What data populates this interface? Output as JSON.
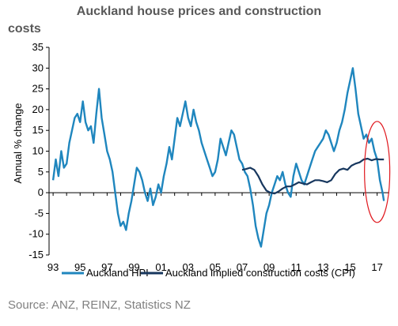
{
  "chart_data": {
    "type": "line",
    "title_line1": "Auckland house prices and construction",
    "title_line2": "costs",
    "ylabel": "Annual % change",
    "xlabel": "",
    "ylim": [
      -15,
      35
    ],
    "xlim": [
      1992.7,
      2017.9
    ],
    "yticks": [
      35,
      30,
      25,
      20,
      15,
      10,
      5,
      0,
      -5,
      -10,
      -15
    ],
    "xtick_labels": [
      "93",
      "95",
      "97",
      "99",
      "01",
      "03",
      "05",
      "07",
      "09",
      "11",
      "13",
      "15",
      "17"
    ],
    "xtick_years": [
      1993,
      1995,
      1997,
      1999,
      2001,
      2003,
      2005,
      2007,
      2009,
      2011,
      2013,
      2015,
      2017
    ],
    "legend_position": "bottom",
    "series": [
      {
        "name": "Auckland HPI",
        "color": "#1f86be",
        "x": [
          1993.0,
          1993.2,
          1993.4,
          1993.6,
          1993.8,
          1994.0,
          1994.2,
          1994.4,
          1994.6,
          1994.8,
          1995.0,
          1995.2,
          1995.4,
          1995.6,
          1995.8,
          1996.0,
          1996.2,
          1996.4,
          1996.6,
          1996.8,
          1997.0,
          1997.2,
          1997.4,
          1997.6,
          1997.8,
          1998.0,
          1998.2,
          1998.4,
          1998.6,
          1998.8,
          1999.0,
          1999.2,
          1999.4,
          1999.6,
          1999.8,
          2000.0,
          2000.2,
          2000.4,
          2000.6,
          2000.8,
          2001.0,
          2001.2,
          2001.4,
          2001.6,
          2001.8,
          2002.0,
          2002.2,
          2002.4,
          2002.6,
          2002.8,
          2003.0,
          2003.2,
          2003.4,
          2003.6,
          2003.8,
          2004.0,
          2004.2,
          2004.4,
          2004.6,
          2004.8,
          2005.0,
          2005.2,
          2005.4,
          2005.6,
          2005.8,
          2006.0,
          2006.2,
          2006.4,
          2006.6,
          2006.8,
          2007.0,
          2007.2,
          2007.4,
          2007.6,
          2007.8,
          2008.0,
          2008.2,
          2008.4,
          2008.6,
          2008.8,
          2009.0,
          2009.2,
          2009.4,
          2009.6,
          2009.8,
          2010.0,
          2010.2,
          2010.4,
          2010.6,
          2010.8,
          2011.0,
          2011.2,
          2011.4,
          2011.6,
          2011.8,
          2012.0,
          2012.2,
          2012.4,
          2012.6,
          2012.8,
          2013.0,
          2013.2,
          2013.4,
          2013.6,
          2013.8,
          2014.0,
          2014.2,
          2014.4,
          2014.6,
          2014.8,
          2015.0,
          2015.2,
          2015.4,
          2015.6,
          2015.8,
          2016.0,
          2016.2,
          2016.4,
          2016.6,
          2016.8,
          2017.0,
          2017.2,
          2017.4,
          2017.5
        ],
        "values": [
          3,
          8,
          4,
          10,
          6,
          7,
          12,
          15,
          18,
          19,
          17,
          22,
          17,
          15,
          16,
          12,
          19,
          25,
          18,
          14,
          10,
          8,
          5,
          0,
          -5,
          -8,
          -7,
          -9,
          -5,
          -2,
          2,
          6,
          5,
          3,
          0,
          -2,
          1,
          -3,
          -1,
          2,
          0,
          4,
          7,
          11,
          8,
          13,
          18,
          16,
          19,
          22,
          18,
          16,
          20,
          17,
          15,
          12,
          10,
          8,
          6,
          4,
          5,
          8,
          13,
          11,
          9,
          12,
          15,
          14,
          11,
          8,
          7,
          5,
          4,
          1,
          -3,
          -8,
          -11,
          -13,
          -9,
          -5,
          -3,
          0,
          2,
          4,
          3,
          5,
          2,
          0,
          -1,
          4,
          7,
          5,
          3,
          2,
          4,
          6,
          8,
          10,
          11,
          12,
          13,
          15,
          14,
          12,
          10,
          12,
          15,
          17,
          20,
          24,
          27,
          30,
          25,
          19,
          16,
          13,
          14,
          12,
          13,
          10,
          8,
          3,
          0,
          -2
        ]
      },
      {
        "name": "Auckland implied construction costs (CPI)",
        "color": "#17375e",
        "x": [
          2007.0,
          2007.3,
          2007.6,
          2007.9,
          2008.2,
          2008.5,
          2008.8,
          2009.1,
          2009.4,
          2009.7,
          2010.0,
          2010.3,
          2010.6,
          2010.9,
          2011.2,
          2011.5,
          2011.8,
          2012.1,
          2012.4,
          2012.7,
          2013.0,
          2013.3,
          2013.6,
          2013.9,
          2014.2,
          2014.5,
          2014.8,
          2015.1,
          2015.4,
          2015.7,
          2016.0,
          2016.3,
          2016.6,
          2016.9,
          2017.2,
          2017.5
        ],
        "values": [
          5.5,
          5.7,
          6,
          5.5,
          4,
          2,
          0.5,
          0,
          -0.2,
          0.3,
          1,
          1.5,
          1.5,
          2,
          2.5,
          2.2,
          2,
          2.5,
          3,
          3,
          2.8,
          2.5,
          3,
          4.5,
          5.5,
          5.8,
          5.5,
          6.5,
          7,
          7.3,
          8,
          8.2,
          7.8,
          8.1,
          8,
          8
        ]
      }
    ],
    "annotations": [
      {
        "type": "ellipse",
        "color": "#e0181e",
        "note": "red circle"
      }
    ]
  },
  "source_text": "Source: ANZ, REINZ, Statistics NZ"
}
